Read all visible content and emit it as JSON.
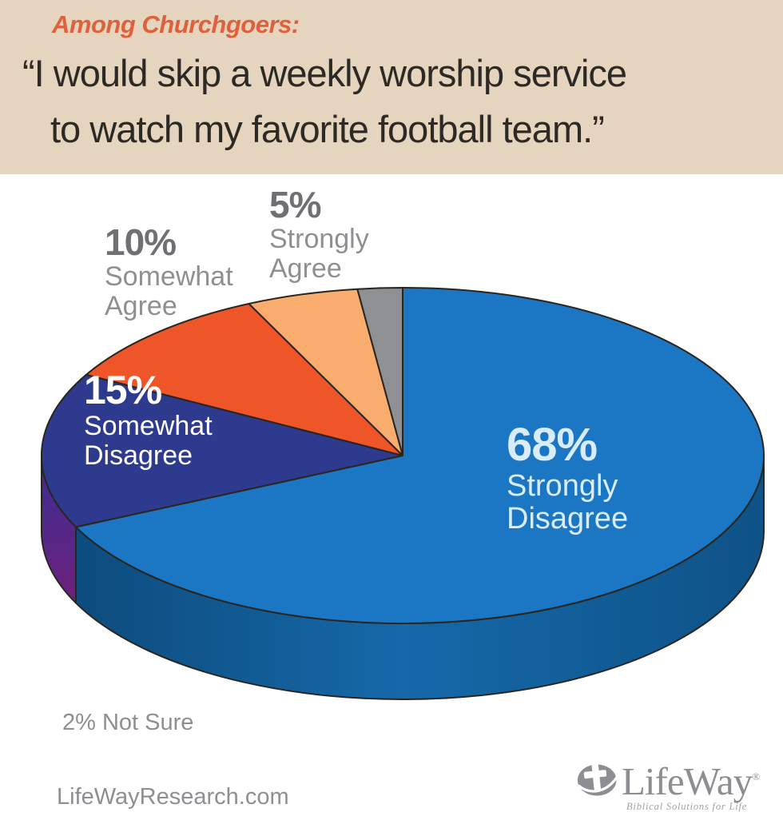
{
  "banner": {
    "eyebrow": "Among Churchgoers:",
    "quote_line1": "“I would skip a weekly worship service",
    "quote_line2": "to watch my favorite football team.”"
  },
  "chart_data": {
    "type": "pie",
    "style": "3d",
    "population": "Among Churchgoers",
    "title": "“I would skip a weekly worship service to watch my favorite football team.”",
    "direction": "clockwise",
    "start_angle_deg": 0,
    "legend_position": "labels-on-chart",
    "note": "2% Not Sure",
    "slices": [
      {
        "label": "Strongly Disagree",
        "pct": 68,
        "pct_text": "68%",
        "label_line1": "Strongly",
        "label_line2": "Disagree",
        "color": "#1b76c4",
        "side_gradient": {
          "dir": "h",
          "stops": [
            [
              0,
              "#0c4878"
            ],
            [
              0.5,
              "#1569a9"
            ],
            [
              1,
              "#0e5287"
            ]
          ]
        }
      },
      {
        "label": "Somewhat Disagree",
        "pct": 15,
        "pct_text": "15%",
        "label_line1": "Somewhat",
        "label_line2": "Disagree",
        "color": "#2d3a8e",
        "side_gradient": {
          "dir": "v",
          "stops": [
            [
              0,
              "#3b2d96"
            ],
            [
              1,
              "#8e1968"
            ]
          ]
        }
      },
      {
        "label": "Somewhat Agree",
        "pct": 10,
        "pct_text": "10%",
        "label_line1": "Somewhat",
        "label_line2": "Agree",
        "color": "#ee5528"
      },
      {
        "label": "Strongly Agree",
        "pct": 5,
        "pct_text": "5%",
        "label_line1": "Strongly",
        "label_line2": "Agree",
        "color": "#f8ad6e"
      },
      {
        "label": "Not Sure",
        "pct": 2,
        "pct_text": "2%",
        "color": "#8e9093"
      }
    ],
    "outline_color": "#2b2520"
  },
  "footer": {
    "source_url": "LifeWayResearch.com",
    "logo_text": "LifeWay",
    "logo_registered": "®",
    "logo_tagline": "Biblical Solutions for Life"
  }
}
